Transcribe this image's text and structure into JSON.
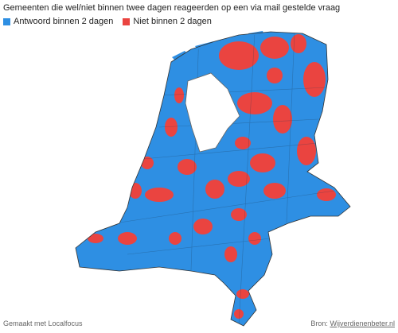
{
  "header": {
    "title": "Gemeenten die wel/niet binnen twee dagen reageerden op een via mail gestelde vraag"
  },
  "legend": {
    "items": [
      {
        "label": "Antwoord binnen 2 dagen",
        "color": "#2e8fe3"
      },
      {
        "label": "Niet binnen 2 dagen",
        "color": "#ea4440"
      }
    ]
  },
  "footer": {
    "credit": "Gemaakt met Localfocus",
    "source_label": "Bron:",
    "source_link": "Wijverdienenbeter.nl"
  }
}
